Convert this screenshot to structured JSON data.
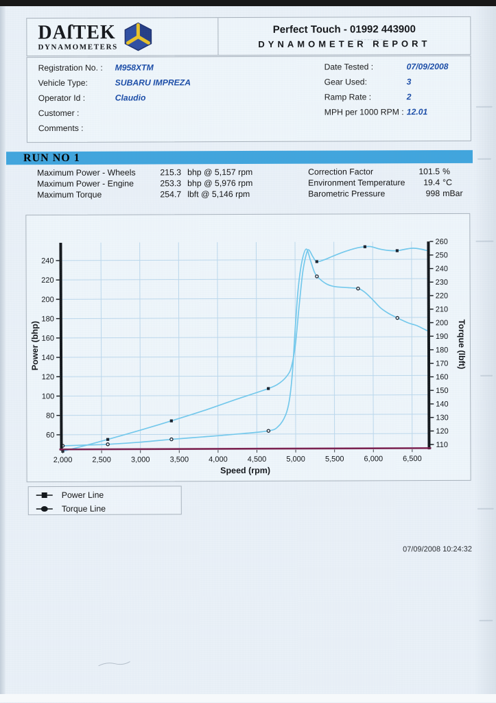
{
  "colors": {
    "run_bar": "#41a5dd",
    "value_blue": "#1d4ea8",
    "curve": "#74c9ec",
    "grid": "#bcd8ec",
    "baseline": "#7b2150",
    "axis": "#14181c"
  },
  "header": {
    "brand": "DAſTEK",
    "brand_sub": "DYNAMOMETERS",
    "phone_line": "Perfect Touch - 01992 443900",
    "report_line": "DYNAMOMETER REPORT"
  },
  "info": {
    "left": [
      {
        "label": "Registration No. :",
        "value": "M958XTM"
      },
      {
        "label": "Vehicle Type:",
        "value": "SUBARU IMPREZA"
      },
      {
        "label": "Operator Id :",
        "value": "Claudio"
      },
      {
        "label": "Customer :",
        "value": ""
      },
      {
        "label": "Comments :",
        "value": ""
      }
    ],
    "right": [
      {
        "label": "Date Tested :",
        "value": "07/09/2008"
      },
      {
        "label": "Gear Used:",
        "value": "3"
      },
      {
        "label": "Ramp Rate :",
        "value": "2"
      },
      {
        "label": "MPH per 1000 RPM :",
        "value": "12.01"
      }
    ]
  },
  "run": {
    "title": "RUN NO 1",
    "stats_left": [
      {
        "label": "Maximum Power - Wheels",
        "value": "215.3",
        "unit": "bhp @ 5,157 rpm"
      },
      {
        "label": "Maximum Power - Engine",
        "value": "253.3",
        "unit": "bhp @ 5,976 rpm"
      },
      {
        "label": "Maximum Torque",
        "value": "254.7",
        "unit": "lbft @ 5,146 rpm"
      }
    ],
    "stats_right": [
      {
        "label": "Correction Factor",
        "value": "101.5",
        "unit": "%"
      },
      {
        "label": "Environment Temperature",
        "value": "19.4",
        "unit": "°C"
      },
      {
        "label": "Barometric Pressure",
        "value": "998",
        "unit": "mBar"
      }
    ]
  },
  "chart_data": {
    "type": "line",
    "xlabel": "Speed (rpm)",
    "ylabel_left": "Power (bhp)",
    "ylabel_right": "Torque (lbft)",
    "xlim": [
      2000,
      6700
    ],
    "ylim_left": [
      45.8,
      258.4
    ],
    "ylim_right": [
      108,
      260
    ],
    "x_ticks": [
      2000,
      2500,
      3000,
      3500,
      4000,
      4500,
      5000,
      5500,
      6000,
      6500
    ],
    "x_tick_labels": [
      "2,000",
      "2,500",
      "3,000",
      "3,500",
      "4,000",
      "4,500",
      "5,000",
      "5,500",
      "6,000",
      "6,500"
    ],
    "yticks_left": [
      60,
      80,
      100,
      120,
      140,
      160,
      180,
      200,
      220,
      240
    ],
    "yticks_right": [
      110,
      120,
      130,
      140,
      150,
      160,
      170,
      180,
      190,
      200,
      210,
      220,
      230,
      240,
      250,
      260
    ],
    "grid": true,
    "legend_position": "below-left",
    "series": [
      {
        "name": "Power Line",
        "axis": "left",
        "marker": "square",
        "points": [
          [
            2000,
            43
          ],
          [
            2300,
            49
          ],
          [
            2580,
            55
          ],
          [
            3000,
            64.5
          ],
          [
            3400,
            74
          ],
          [
            3800,
            84
          ],
          [
            4200,
            95
          ],
          [
            4650,
            107
          ],
          [
            4800,
            113
          ],
          [
            4900,
            121
          ],
          [
            4950,
            130
          ],
          [
            5000,
            152
          ],
          [
            5050,
            192
          ],
          [
            5100,
            228
          ],
          [
            5150,
            247
          ],
          [
            5180,
            250
          ],
          [
            5230,
            243
          ],
          [
            5280,
            238
          ],
          [
            5380,
            240
          ],
          [
            5500,
            244
          ],
          [
            5650,
            248.5
          ],
          [
            5800,
            252
          ],
          [
            5900,
            253.2
          ],
          [
            5976,
            253.3
          ],
          [
            6080,
            251
          ],
          [
            6200,
            249.3
          ],
          [
            6315,
            249
          ],
          [
            6420,
            250.5
          ],
          [
            6520,
            251.5
          ],
          [
            6620,
            250.5
          ],
          [
            6700,
            249
          ]
        ],
        "markers": [
          [
            2000,
            43
          ],
          [
            2580,
            55
          ],
          [
            3400,
            74
          ],
          [
            4650,
            107
          ],
          [
            5280,
            238
          ],
          [
            5900,
            253.2
          ],
          [
            6315,
            249
          ]
        ]
      },
      {
        "name": "Torque Line",
        "axis": "right",
        "marker": "circle",
        "points": [
          [
            2000,
            110
          ],
          [
            2300,
            110.5
          ],
          [
            2580,
            111
          ],
          [
            3000,
            112.5
          ],
          [
            3400,
            114.5
          ],
          [
            3800,
            116.2
          ],
          [
            4200,
            118
          ],
          [
            4650,
            120.5
          ],
          [
            4780,
            124
          ],
          [
            4870,
            132
          ],
          [
            4920,
            143
          ],
          [
            4960,
            163
          ],
          [
            5000,
            197
          ],
          [
            5040,
            226
          ],
          [
            5090,
            246
          ],
          [
            5146,
            254.7
          ],
          [
            5200,
            246
          ],
          [
            5250,
            237.5
          ],
          [
            5300,
            233.5
          ],
          [
            5400,
            229
          ],
          [
            5500,
            227
          ],
          [
            5650,
            226.2
          ],
          [
            5810,
            225.4
          ],
          [
            5900,
            222.5
          ],
          [
            6000,
            217
          ],
          [
            6100,
            211
          ],
          [
            6200,
            207
          ],
          [
            6315,
            203.6
          ],
          [
            6450,
            200
          ],
          [
            6560,
            198
          ],
          [
            6650,
            195.5
          ],
          [
            6700,
            194
          ]
        ],
        "markers": [
          [
            2000,
            110
          ],
          [
            2580,
            111
          ],
          [
            3400,
            114.5
          ],
          [
            4650,
            120.5
          ],
          [
            5280,
            234.5
          ],
          [
            5810,
            225.4
          ],
          [
            6315,
            203.6
          ]
        ]
      }
    ]
  },
  "legend": {
    "items": [
      {
        "marker": "square",
        "label": "Power Line"
      },
      {
        "marker": "circle",
        "label": "Torque Line"
      }
    ]
  },
  "footer": {
    "timestamp": "07/09/2008 10:24:32"
  }
}
